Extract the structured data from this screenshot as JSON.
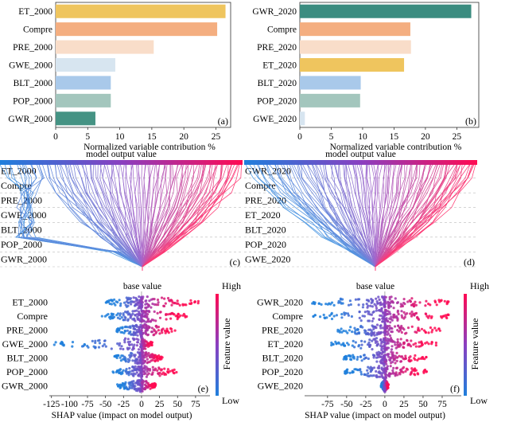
{
  "chart_data": [
    {
      "type": "bar",
      "panel_label": "(a)",
      "orientation": "horizontal",
      "categories": [
        "ET_2000",
        "Compre",
        "PRE_2000",
        "GWE_2000",
        "BLT_2000",
        "POP_2000",
        "GWR_2000"
      ],
      "values": [
        26.5,
        25.2,
        15.3,
        9.3,
        8.6,
        8.6,
        6.2
      ],
      "colors": [
        "#efc55e",
        "#f4ae80",
        "#f9ddc9",
        "#d7e5f0",
        "#a9c9ea",
        "#a3c6bd",
        "#459384"
      ],
      "xlabel": "Normalized variable contribution %",
      "xticks": [
        0,
        5,
        10,
        15,
        20,
        25
      ],
      "xlim": [
        0,
        27.3
      ]
    },
    {
      "type": "bar",
      "panel_label": "(b)",
      "orientation": "horizontal",
      "categories": [
        "GWR_2020",
        "Compre",
        "PRE_2020",
        "ET_2020",
        "BLT_2020",
        "POP_2020",
        "GWE_2020"
      ],
      "values": [
        27.3,
        17.6,
        17.7,
        16.6,
        9.7,
        9.6,
        0.8
      ],
      "colors": [
        "#3b8c80",
        "#f4ae80",
        "#f9ddc9",
        "#efc55e",
        "#a9c9ea",
        "#a3c6bd",
        "#d7e5f0"
      ],
      "xlabel": "Normalized variable contribution %",
      "xticks": [
        0,
        5,
        10,
        15,
        20,
        25
      ],
      "xlim": [
        0,
        28.5
      ]
    },
    {
      "type": "line",
      "kind": "shap-decision",
      "panel_label": "(c)",
      "title": "model output value",
      "features": [
        "ET_2000",
        "Compre",
        "PRE_2000",
        "GWE_2000",
        "BLT_2000",
        "POP_2000",
        "GWR_2000"
      ],
      "bottom_label": "base value"
    },
    {
      "type": "line",
      "kind": "shap-decision",
      "panel_label": "(d)",
      "title": "model output value",
      "features": [
        "GWR_2020",
        "Compre",
        "PRE_2020",
        "ET_2020",
        "BLT_2020",
        "POP_2020",
        "GWE_2020"
      ],
      "bottom_label": "base value"
    },
    {
      "type": "scatter",
      "kind": "shap-beeswarm",
      "panel_label": "(e)",
      "features": [
        "ET_2000",
        "Compre",
        "PRE_2000",
        "GWE_2000",
        "BLT_2000",
        "POP_2000",
        "GWR_2000"
      ],
      "ranges": [
        [
          -50,
          80
        ],
        [
          -55,
          65
        ],
        [
          -35,
          50
        ],
        [
          -125,
          15
        ],
        [
          -40,
          30
        ],
        [
          -40,
          50
        ],
        [
          -35,
          20
        ]
      ],
      "xlabel": "SHAP value (impact on model output)",
      "xticks": [
        -125,
        -100,
        -75,
        -50,
        -25,
        0,
        25,
        50,
        75
      ],
      "xlim": [
        -128,
        95
      ],
      "colorbar": {
        "label": "Feature value",
        "high": "High",
        "low": "Low"
      }
    },
    {
      "type": "scatter",
      "kind": "shap-beeswarm",
      "panel_label": "(f)",
      "features": [
        "GWR_2020",
        "Compre",
        "PRE_2020",
        "ET_2020",
        "BLT_2020",
        "POP_2020",
        "GWE_2020"
      ],
      "ranges": [
        [
          -95,
          85
        ],
        [
          -95,
          85
        ],
        [
          -65,
          75
        ],
        [
          -70,
          70
        ],
        [
          -55,
          55
        ],
        [
          -55,
          55
        ],
        [
          -5,
          5
        ]
      ],
      "xlabel": "SHAP value (impact on model output)",
      "xticks": [
        -75,
        -50,
        -25,
        0,
        25,
        50,
        75
      ],
      "xlim": [
        -105,
        100
      ],
      "colorbar": {
        "label": "Feature value",
        "high": "High",
        "low": "Low"
      }
    }
  ]
}
